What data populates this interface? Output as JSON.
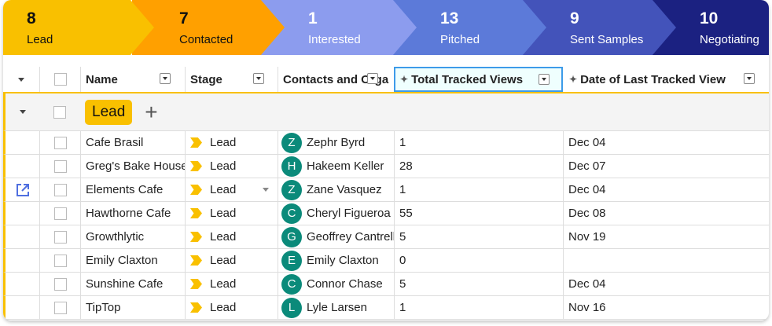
{
  "pipeline": [
    {
      "count": "8",
      "label": "Lead",
      "color": "#f9c000",
      "text": "#111"
    },
    {
      "count": "7",
      "label": "Contacted",
      "color": "#ffa000",
      "text": "#111"
    },
    {
      "count": "1",
      "label": "Interested",
      "color": "#8c9cee",
      "text": "#fff"
    },
    {
      "count": "13",
      "label": "Pitched",
      "color": "#5c7ad9",
      "text": "#fff"
    },
    {
      "count": "9",
      "label": "Sent Samples",
      "color": "#4353ba",
      "text": "#fff"
    },
    {
      "count": "10",
      "label": "Negotiating",
      "color": "#1b2181",
      "text": "#fff"
    }
  ],
  "columns": {
    "name": "Name",
    "stage": "Stage",
    "contacts": "Contacts and Orga",
    "views": "Total Tracked Views",
    "date": "Date of Last Tracked View"
  },
  "group": {
    "label": "Lead",
    "add_icon": "plus-icon"
  },
  "rows": [
    {
      "name": "Cafe Brasil",
      "stage": "Lead",
      "initial": "Z",
      "contact": "Zephr Byrd",
      "views": "1",
      "date": "Dec 04"
    },
    {
      "name": "Greg's Bake House",
      "stage": "Lead",
      "initial": "H",
      "contact": "Hakeem Keller",
      "views": "28",
      "date": "Dec 07"
    },
    {
      "name": "Elements Cafe",
      "stage": "Lead",
      "initial": "Z",
      "contact": "Zane Vasquez",
      "views": "1",
      "date": "Dec 04"
    },
    {
      "name": "Hawthorne Cafe",
      "stage": "Lead",
      "initial": "C",
      "contact": "Cheryl Figueroa",
      "views": "55",
      "date": "Dec 08"
    },
    {
      "name": "Growthlytic",
      "stage": "Lead",
      "initial": "G",
      "contact": "Geoffrey Cantrell",
      "views": "5",
      "date": "Nov 19"
    },
    {
      "name": "Emily Claxton",
      "stage": "Lead",
      "initial": "E",
      "contact": "Emily Claxton",
      "views": "0",
      "date": ""
    },
    {
      "name": "Sunshine Cafe",
      "stage": "Lead",
      "initial": "C",
      "contact": "Connor Chase",
      "views": "5",
      "date": "Dec 04"
    },
    {
      "name": "TipTop",
      "stage": "Lead",
      "initial": "L",
      "contact": "Lyle Larsen",
      "views": "1",
      "date": "Nov 16"
    }
  ]
}
